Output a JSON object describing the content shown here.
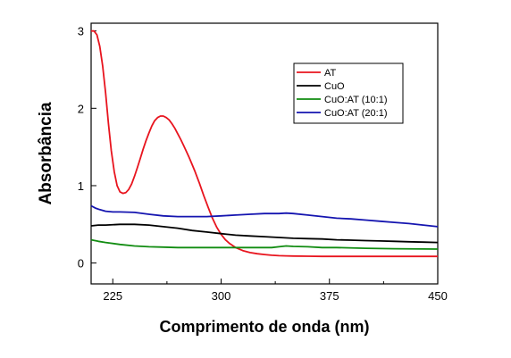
{
  "chart_data": {
    "type": "line",
    "xlabel": "Comprimento de onda (nm)",
    "ylabel": "Absorbância",
    "xlim": [
      210,
      450
    ],
    "ylim": [
      -0.27,
      3.1
    ],
    "x_ticks": [
      225,
      300,
      375,
      450
    ],
    "x_minor_ticks": [
      262.5,
      337.5,
      412.5
    ],
    "y_ticks": [
      0,
      1,
      2,
      3
    ],
    "grid": false,
    "legend_position": "top-right",
    "series": [
      {
        "name": "AT",
        "color": "#e8141e",
        "x": [
          210,
          212,
          214,
          216,
          218,
          220,
          222,
          224,
          226,
          228,
          230,
          232,
          234,
          236,
          238,
          240,
          242,
          244,
          246,
          248,
          250,
          252,
          254,
          256,
          258,
          260,
          262,
          264,
          266,
          268,
          270,
          272,
          274,
          276,
          278,
          280,
          282,
          285,
          288,
          291,
          294,
          297,
          300,
          303,
          306,
          310,
          315,
          320,
          325,
          330,
          335,
          340,
          345,
          350,
          360,
          370,
          380,
          400,
          420,
          450
        ],
        "values": [
          3.0,
          3.0,
          2.95,
          2.8,
          2.55,
          2.2,
          1.8,
          1.45,
          1.18,
          1.0,
          0.92,
          0.9,
          0.91,
          0.95,
          1.02,
          1.12,
          1.23,
          1.35,
          1.47,
          1.58,
          1.68,
          1.77,
          1.84,
          1.88,
          1.9,
          1.9,
          1.88,
          1.85,
          1.8,
          1.74,
          1.67,
          1.6,
          1.52,
          1.44,
          1.36,
          1.27,
          1.18,
          1.03,
          0.87,
          0.72,
          0.58,
          0.46,
          0.37,
          0.3,
          0.25,
          0.2,
          0.16,
          0.135,
          0.12,
          0.11,
          0.1,
          0.095,
          0.092,
          0.09,
          0.088,
          0.086,
          0.085,
          0.085,
          0.085,
          0.085
        ]
      },
      {
        "name": "CuO",
        "color": "#000000",
        "x": [
          210,
          215,
          220,
          230,
          240,
          250,
          260,
          270,
          280,
          290,
          300,
          310,
          320,
          330,
          340,
          350,
          360,
          370,
          380,
          390,
          400,
          410,
          420,
          430,
          440,
          450
        ],
        "values": [
          0.48,
          0.49,
          0.49,
          0.5,
          0.5,
          0.49,
          0.47,
          0.45,
          0.42,
          0.4,
          0.38,
          0.36,
          0.35,
          0.34,
          0.33,
          0.32,
          0.315,
          0.31,
          0.3,
          0.295,
          0.29,
          0.285,
          0.28,
          0.275,
          0.27,
          0.265
        ]
      },
      {
        "name": "CuO:AT (10:1)",
        "color": "#118c11",
        "x": [
          210,
          215,
          220,
          230,
          240,
          250,
          260,
          270,
          280,
          290,
          300,
          310,
          320,
          330,
          335,
          340,
          345,
          350,
          360,
          370,
          380,
          400,
          420,
          450
        ],
        "values": [
          0.3,
          0.28,
          0.265,
          0.24,
          0.22,
          0.21,
          0.205,
          0.2,
          0.2,
          0.2,
          0.2,
          0.2,
          0.2,
          0.2,
          0.2,
          0.21,
          0.22,
          0.215,
          0.21,
          0.2,
          0.2,
          0.19,
          0.185,
          0.18
        ]
      },
      {
        "name": "CuO:AT (20:1)",
        "color": "#1515b0",
        "x": [
          210,
          213,
          216,
          220,
          225,
          230,
          240,
          250,
          260,
          270,
          280,
          290,
          300,
          310,
          320,
          330,
          340,
          345,
          350,
          360,
          370,
          380,
          390,
          400,
          410,
          420,
          430,
          440,
          450
        ],
        "values": [
          0.74,
          0.71,
          0.69,
          0.67,
          0.66,
          0.66,
          0.655,
          0.63,
          0.61,
          0.6,
          0.6,
          0.6,
          0.61,
          0.62,
          0.63,
          0.64,
          0.64,
          0.645,
          0.64,
          0.62,
          0.6,
          0.58,
          0.57,
          0.555,
          0.54,
          0.525,
          0.51,
          0.49,
          0.47
        ]
      }
    ]
  }
}
